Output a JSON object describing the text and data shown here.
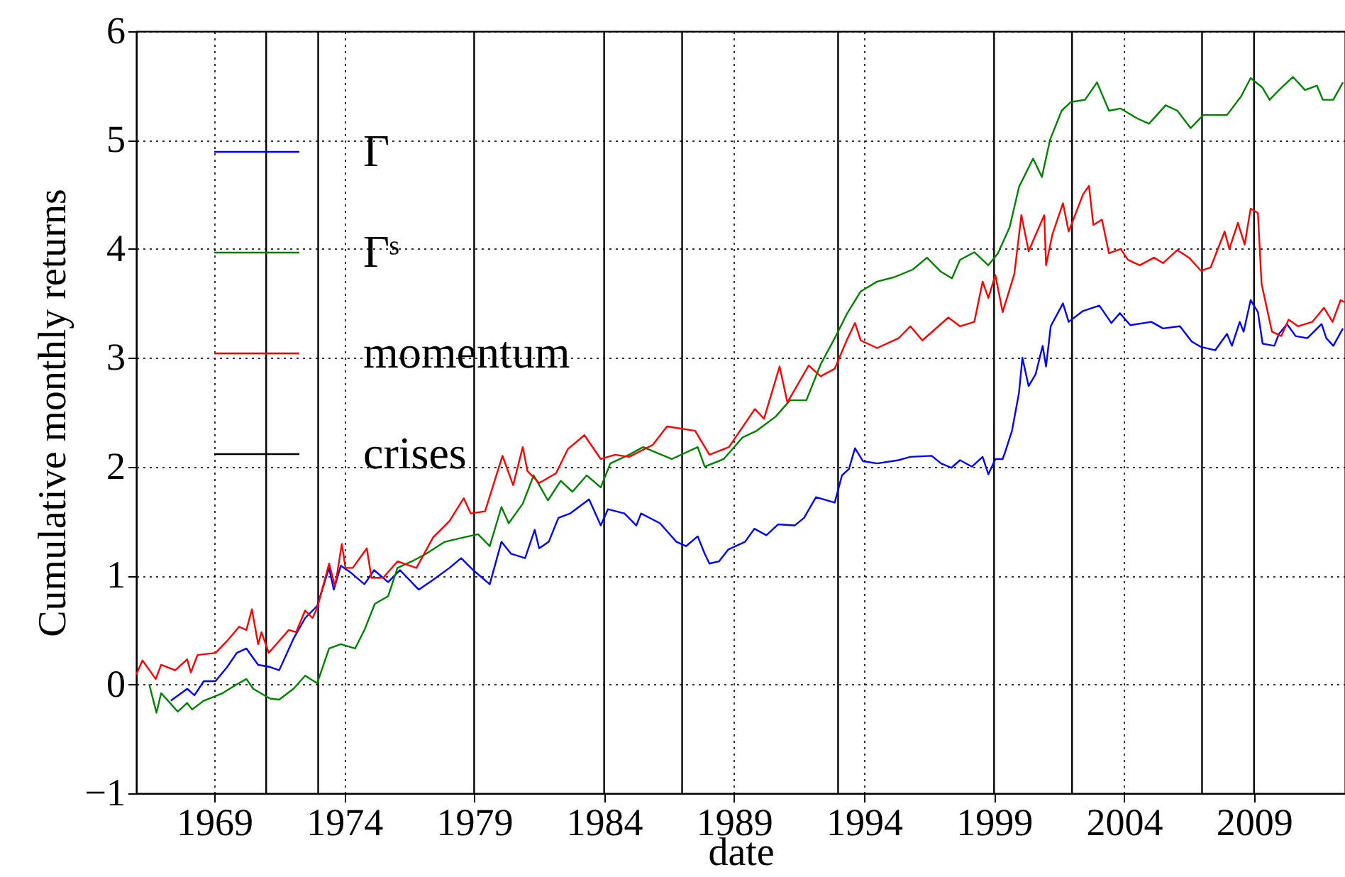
{
  "chart_data": {
    "type": "line",
    "xlabel": "date",
    "ylabel": "Cumulative monthly returns",
    "xlim": [
      1966,
      2012.5
    ],
    "xticks": [
      1969,
      1974,
      1979,
      1984,
      1989,
      1994,
      1999,
      2004,
      2009
    ],
    "ylim": [
      -1,
      6
    ],
    "yticks": [
      -1,
      0,
      1,
      2,
      3,
      4,
      5,
      6
    ],
    "grid": true,
    "legend": "top left",
    "series": [
      {
        "name": "Γ",
        "color": "#0000ff",
        "x": [
          1967.33,
          1967.96,
          1968.24,
          1968.6,
          1969.05,
          1969.5,
          1969.87,
          1970.24,
          1970.69,
          1971.15,
          1971.5,
          1972.05,
          1972.5,
          1972.96,
          1973.42,
          1973.6,
          1973.87,
          1974.24,
          1974.78,
          1975.15,
          1975.69,
          1976.15,
          1976.87,
          1977.42,
          1978.05,
          1978.5,
          1978.96,
          1979.6,
          1980.05,
          1980.42,
          1980.96,
          1981.33,
          1981.5,
          1981.87,
          1982.24,
          1982.69,
          1983.42,
          1983.87,
          1984.15,
          1984.78,
          1985.24,
          1985.42,
          1986.15,
          1986.78,
          1987.15,
          1987.6,
          1987.87,
          1988.05,
          1988.42,
          1988.78,
          1989.42,
          1989.78,
          1990.24,
          1990.69,
          1991.33,
          1991.69,
          1992.15,
          1992.87,
          1993.15,
          1993.42,
          1993.65,
          1993.96,
          1994.5,
          1995.33,
          1995.78,
          1996.6,
          1996.96,
          1997.36,
          1997.69,
          1998.15,
          1998.56,
          1998.78,
          1999.05,
          1999.33,
          1999.42,
          1999.69,
          1999.96,
          2000.09,
          2000.33,
          2000.6,
          2000.87,
          2001.0,
          2001.18,
          2001.65,
          2001.87,
          2002.42,
          2003.05,
          2003.51,
          2003.84,
          2004.24,
          2005.05,
          2005.5,
          2006.15,
          2006.6,
          2006.96,
          2007.51,
          2007.96,
          2008.15,
          2008.45,
          2008.6,
          2008.87,
          2009.15,
          2009.33,
          2009.78,
          2009.96,
          2010.27,
          2010.6,
          2011.05,
          2011.6,
          2011.78,
          2012.05,
          2012.42
        ],
        "values": [
          -0.15,
          -0.04,
          -0.1,
          0.03,
          0.03,
          0.16,
          0.29,
          0.33,
          0.18,
          0.16,
          0.13,
          0.42,
          0.61,
          0.72,
          1.07,
          0.87,
          1.09,
          1.03,
          0.92,
          1.05,
          0.94,
          1.05,
          0.87,
          0.96,
          1.07,
          1.16,
          1.05,
          0.92,
          1.31,
          1.2,
          1.16,
          1.42,
          1.25,
          1.31,
          1.53,
          1.57,
          1.7,
          1.46,
          1.61,
          1.57,
          1.46,
          1.57,
          1.48,
          1.31,
          1.27,
          1.36,
          1.2,
          1.11,
          1.13,
          1.24,
          1.31,
          1.43,
          1.37,
          1.47,
          1.46,
          1.53,
          1.72,
          1.67,
          1.92,
          1.98,
          2.17,
          2.05,
          2.03,
          2.06,
          2.09,
          2.1,
          2.03,
          1.99,
          2.06,
          2.0,
          2.09,
          1.93,
          2.07,
          2.07,
          2.13,
          2.33,
          2.68,
          3.0,
          2.74,
          2.85,
          3.11,
          2.92,
          3.29,
          3.5,
          3.33,
          3.43,
          3.48,
          3.32,
          3.41,
          3.3,
          3.33,
          3.27,
          3.29,
          3.15,
          3.1,
          3.07,
          3.22,
          3.11,
          3.33,
          3.24,
          3.53,
          3.42,
          3.13,
          3.11,
          3.22,
          3.31,
          3.2,
          3.18,
          3.31,
          3.18,
          3.11,
          3.27
        ]
      },
      {
        "name": "Γˢ",
        "color": "#008000",
        "x": [
          1966.5,
          1966.78,
          1966.96,
          1967.6,
          1967.96,
          1968.15,
          1968.6,
          1969.33,
          1969.87,
          1970.24,
          1970.5,
          1971.15,
          1971.5,
          1972.05,
          1972.5,
          1972.96,
          1973.42,
          1973.87,
          1974.42,
          1974.78,
          1975.18,
          1975.69,
          1976.05,
          1976.6,
          1977.15,
          1977.87,
          1978.6,
          1979.15,
          1979.6,
          1980.05,
          1980.33,
          1980.87,
          1981.29,
          1981.84,
          1982.33,
          1982.78,
          1983.33,
          1983.87,
          1984.24,
          1984.96,
          1985.5,
          1986.6,
          1987.6,
          1987.87,
          1988.6,
          1989.33,
          1989.87,
          1990.6,
          1991.15,
          1991.78,
          1992.33,
          1992.87,
          1993.33,
          1993.87,
          1994.5,
          1995.15,
          1995.87,
          1996.42,
          1996.96,
          1997.38,
          1997.69,
          1998.24,
          1998.78,
          1999.15,
          1999.6,
          1999.96,
          2000.5,
          2000.84,
          2001.15,
          2001.6,
          2001.96,
          2002.5,
          2002.96,
          2003.42,
          2003.87,
          2004.5,
          2004.96,
          2005.6,
          2006.05,
          2006.56,
          2007.05,
          2007.96,
          2008.5,
          2008.87,
          2009.33,
          2009.6,
          2009.96,
          2010.5,
          2010.96,
          2011.42,
          2011.65,
          2012.05,
          2012.42
        ],
        "values": [
          0.0,
          -0.26,
          -0.08,
          -0.25,
          -0.17,
          -0.23,
          -0.15,
          -0.08,
          0.0,
          0.05,
          -0.04,
          -0.13,
          -0.14,
          -0.04,
          0.08,
          0.01,
          0.33,
          0.37,
          0.33,
          0.5,
          0.74,
          0.81,
          1.07,
          1.13,
          1.2,
          1.31,
          1.35,
          1.38,
          1.27,
          1.63,
          1.48,
          1.66,
          1.92,
          1.69,
          1.87,
          1.77,
          1.92,
          1.81,
          2.03,
          2.11,
          2.18,
          2.07,
          2.18,
          2.0,
          2.07,
          2.27,
          2.33,
          2.46,
          2.61,
          2.61,
          2.94,
          3.18,
          3.4,
          3.61,
          3.7,
          3.74,
          3.81,
          3.92,
          3.79,
          3.73,
          3.9,
          3.97,
          3.85,
          3.96,
          4.2,
          4.57,
          4.83,
          4.66,
          5.0,
          5.27,
          5.35,
          5.37,
          5.53,
          5.27,
          5.29,
          5.2,
          5.15,
          5.32,
          5.27,
          5.11,
          5.23,
          5.23,
          5.4,
          5.57,
          5.48,
          5.37,
          5.46,
          5.58,
          5.46,
          5.5,
          5.37,
          5.37,
          5.53
        ]
      },
      {
        "name": "momentum",
        "color": "#ff0000",
        "x": [
          1966.0,
          1966.24,
          1966.75,
          1966.96,
          1967.5,
          1967.96,
          1968.1,
          1968.36,
          1969.05,
          1969.5,
          1969.96,
          1970.24,
          1970.45,
          1970.69,
          1970.82,
          1971.1,
          1971.5,
          1971.87,
          1972.15,
          1972.5,
          1972.78,
          1972.96,
          1973.42,
          1973.65,
          1973.91,
          1974.05,
          1974.33,
          1974.87,
          1975.05,
          1975.5,
          1976.05,
          1976.78,
          1977.42,
          1978.05,
          1978.6,
          1978.87,
          1979.42,
          1980.09,
          1980.5,
          1980.87,
          1981.05,
          1981.5,
          1982.15,
          1982.6,
          1983.24,
          1983.87,
          1984.42,
          1984.96,
          1985.87,
          1986.42,
          1987.5,
          1988.05,
          1988.8,
          1989.8,
          1990.15,
          1990.75,
          1991.05,
          1991.87,
          1992.33,
          1992.87,
          1993.33,
          1993.65,
          1993.87,
          1994.5,
          1995.33,
          1995.78,
          1996.24,
          1997.24,
          1997.69,
          1998.24,
          1998.56,
          1998.78,
          1999.05,
          1999.33,
          1999.78,
          2000.05,
          2000.33,
          2000.6,
          2000.93,
          2001.0,
          2001.24,
          2001.65,
          2001.87,
          2002.05,
          2002.42,
          2002.65,
          2002.82,
          2003.15,
          2003.42,
          2003.87,
          2004.15,
          2004.6,
          2005.15,
          2005.5,
          2006.05,
          2006.5,
          2006.96,
          2007.33,
          2007.87,
          2008.05,
          2008.38,
          2008.64,
          2008.87,
          2009.15,
          2009.29,
          2009.69,
          2010.05,
          2010.33,
          2010.69,
          2011.24,
          2011.69,
          2012.02,
          2012.33,
          2012.5
        ],
        "values": [
          0.09,
          0.22,
          0.05,
          0.18,
          0.13,
          0.23,
          0.11,
          0.27,
          0.29,
          0.4,
          0.53,
          0.5,
          0.69,
          0.37,
          0.48,
          0.29,
          0.4,
          0.5,
          0.48,
          0.68,
          0.61,
          0.7,
          1.11,
          0.9,
          1.29,
          1.07,
          1.07,
          1.25,
          0.98,
          0.98,
          1.13,
          1.07,
          1.35,
          1.5,
          1.71,
          1.57,
          1.59,
          2.1,
          1.83,
          2.18,
          1.96,
          1.85,
          1.94,
          2.16,
          2.29,
          2.07,
          2.11,
          2.09,
          2.2,
          2.37,
          2.33,
          2.11,
          2.18,
          2.53,
          2.44,
          2.92,
          2.59,
          2.93,
          2.83,
          2.9,
          3.16,
          3.32,
          3.16,
          3.09,
          3.18,
          3.29,
          3.16,
          3.37,
          3.29,
          3.33,
          3.7,
          3.55,
          3.76,
          3.42,
          3.77,
          4.31,
          3.98,
          4.13,
          4.31,
          3.85,
          4.13,
          4.42,
          4.16,
          4.27,
          4.5,
          4.58,
          4.22,
          4.27,
          3.96,
          4.0,
          3.9,
          3.85,
          3.92,
          3.87,
          3.99,
          3.92,
          3.8,
          3.83,
          4.16,
          4.0,
          4.24,
          4.04,
          4.37,
          4.33,
          3.68,
          3.24,
          3.2,
          3.35,
          3.29,
          3.33,
          3.46,
          3.33,
          3.53,
          3.51
        ]
      }
    ],
    "ref_lines": [
      {
        "axis": "x",
        "value": 1971,
        "label": "crises",
        "color": "#000000"
      },
      {
        "axis": "x",
        "value": 1973,
        "color": "#000000"
      },
      {
        "axis": "x",
        "value": 1979,
        "color": "#000000"
      },
      {
        "axis": "x",
        "value": 1984,
        "color": "#000000"
      },
      {
        "axis": "x",
        "value": 1987,
        "color": "#000000"
      },
      {
        "axis": "x",
        "value": 1993,
        "color": "#000000"
      },
      {
        "axis": "x",
        "value": 1999,
        "color": "#000000"
      },
      {
        "axis": "x",
        "value": 2002,
        "color": "#000000"
      },
      {
        "axis": "x",
        "value": 2007,
        "color": "#000000"
      },
      {
        "axis": "x",
        "value": 2009,
        "color": "#000000"
      }
    ]
  }
}
